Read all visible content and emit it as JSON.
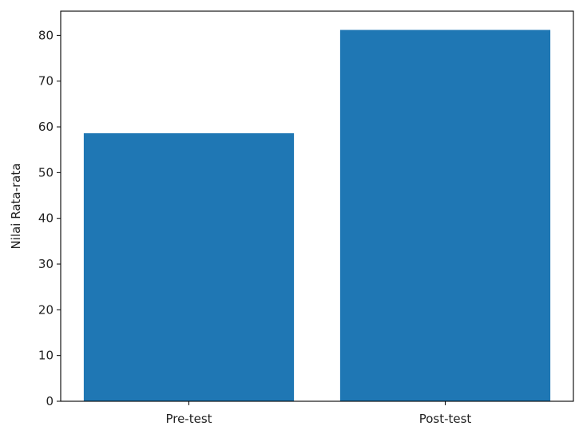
{
  "chart_data": {
    "type": "bar",
    "title": "",
    "xlabel": "",
    "ylabel": "Nilai Rata-rata",
    "categories": [
      "Pre-test",
      "Post-test"
    ],
    "values": [
      58.6,
      81.2
    ],
    "ylim": [
      0,
      85.3
    ],
    "yticks": [
      0,
      10,
      20,
      30,
      40,
      50,
      60,
      70,
      80
    ],
    "grid": false,
    "legend": "none",
    "bar_color": "#1f77b4"
  }
}
